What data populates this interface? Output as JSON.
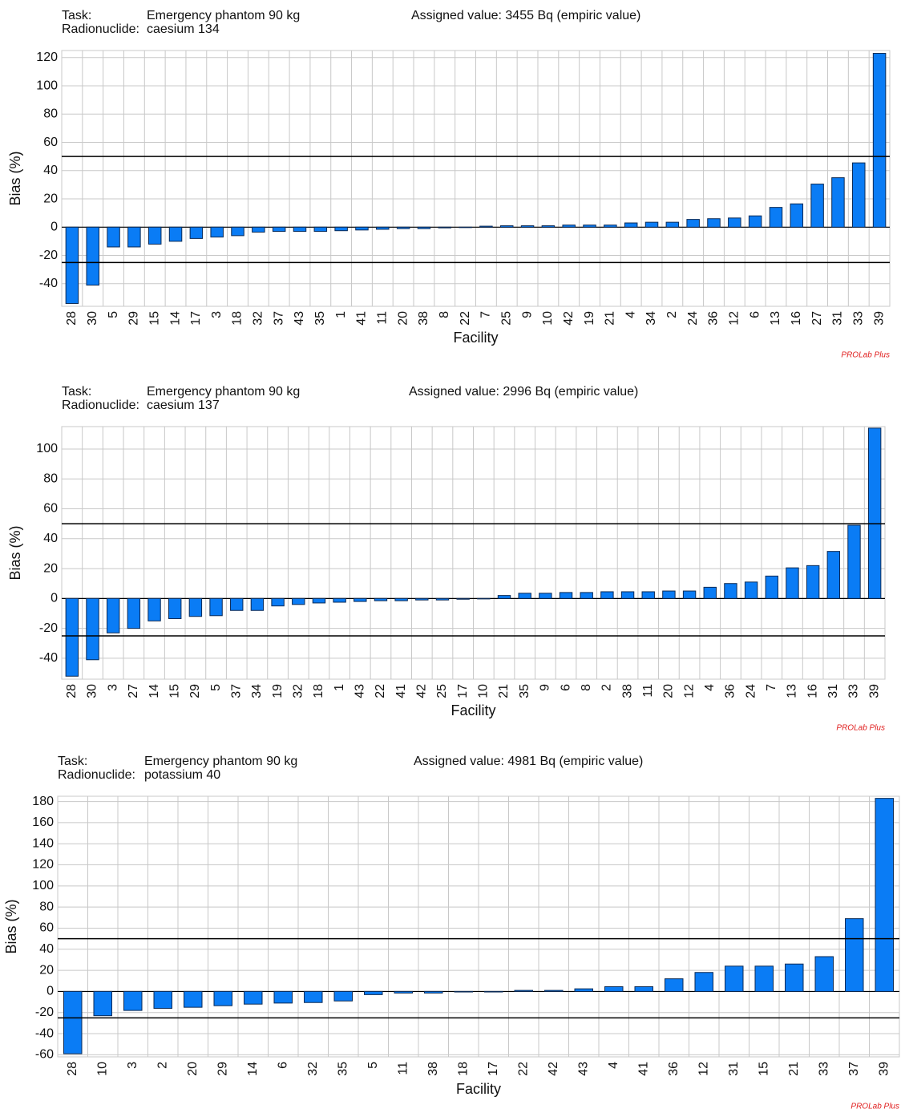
{
  "chart_data": [
    {
      "type": "bar",
      "task_label": "Task:",
      "task": "Emergency phantom 90 kg",
      "radionuclide_label": "Radionuclide:",
      "radionuclide": "caesium 134",
      "assigned_value": "Assigned value: 3455 Bq (empiric value)",
      "xlabel": "Facility",
      "ylabel": "Bias (%)",
      "watermark": "PROLab Plus",
      "categories": [
        "28",
        "30",
        "5",
        "29",
        "15",
        "14",
        "17",
        "3",
        "18",
        "32",
        "37",
        "43",
        "35",
        "1",
        "41",
        "11",
        "20",
        "38",
        "8",
        "22",
        "7",
        "25",
        "9",
        "10",
        "42",
        "19",
        "21",
        "4",
        "34",
        "2",
        "24",
        "36",
        "12",
        "6",
        "13",
        "16",
        "27",
        "31",
        "33",
        "39"
      ],
      "values": [
        -54,
        -41,
        -14,
        -14,
        -12,
        -10,
        -8,
        -7,
        -6,
        -3.5,
        -3,
        -3,
        -3,
        -2.5,
        -2,
        -1.5,
        -1,
        -1,
        -0.5,
        -0.3,
        0.7,
        1,
        1,
        1,
        1.5,
        1.5,
        1.5,
        3,
        3.5,
        3.5,
        5.5,
        6,
        6.5,
        8,
        14,
        16.5,
        30.5,
        35,
        45.5,
        123
      ],
      "color": "#0a7cf5",
      "ylim": [
        -56,
        125
      ],
      "yticks": [
        -40,
        -20,
        0,
        20,
        40,
        60,
        80,
        100,
        120
      ],
      "reference_lines": [
        50,
        -25
      ],
      "grid": true
    },
    {
      "type": "bar",
      "task_label": "Task:",
      "task": "Emergency phantom 90 kg",
      "radionuclide_label": "Radionuclide:",
      "radionuclide": "caesium 137",
      "assigned_value": "Assigned value: 2996 Bq (empiric value)",
      "xlabel": "Facility",
      "ylabel": "Bias (%)",
      "watermark": "PROLab Plus",
      "categories": [
        "28",
        "30",
        "3",
        "27",
        "14",
        "15",
        "29",
        "5",
        "37",
        "34",
        "19",
        "32",
        "18",
        "1",
        "43",
        "22",
        "41",
        "42",
        "25",
        "17",
        "10",
        "21",
        "35",
        "9",
        "6",
        "8",
        "2",
        "38",
        "11",
        "20",
        "12",
        "4",
        "36",
        "24",
        "7",
        "13",
        "16",
        "31",
        "33",
        "39"
      ],
      "values": [
        -52,
        -41,
        -23,
        -20,
        -15,
        -13.5,
        -12,
        -11.5,
        -8,
        -8,
        -5,
        -4,
        -3,
        -2.5,
        -2,
        -1.5,
        -1.5,
        -1,
        -1,
        -0.5,
        -0.3,
        2,
        3.5,
        3.5,
        4,
        4,
        4.5,
        4.5,
        4.5,
        5,
        5,
        7.5,
        10,
        11,
        15,
        20.5,
        22,
        31.5,
        49,
        114
      ],
      "color": "#0a7cf5",
      "ylim": [
        -54,
        115
      ],
      "yticks": [
        -40,
        -20,
        0,
        20,
        40,
        60,
        80,
        100
      ],
      "reference_lines": [
        50,
        -25
      ],
      "grid": true
    },
    {
      "type": "bar",
      "task_label": "Task:",
      "task": "Emergency phantom 90 kg",
      "radionuclide_label": "Radionuclide:",
      "radionuclide": "potassium 40",
      "assigned_value": "Assigned value: 4981 Bq (empiric value)",
      "xlabel": "Facility",
      "ylabel": "Bias (%)",
      "watermark": "PROLab Plus",
      "categories": [
        "28",
        "10",
        "3",
        "2",
        "20",
        "29",
        "14",
        "6",
        "32",
        "35",
        "5",
        "11",
        "38",
        "18",
        "17",
        "22",
        "42",
        "43",
        "4",
        "41",
        "36",
        "12",
        "31",
        "15",
        "21",
        "33",
        "37",
        "39"
      ],
      "values": [
        -59,
        -23,
        -18,
        -16,
        -15,
        -13.5,
        -12,
        -11,
        -10.5,
        -9,
        -3,
        -1.5,
        -1.5,
        -0.5,
        -0.5,
        1,
        1,
        2.5,
        4.5,
        4.5,
        12,
        18,
        24,
        24,
        26,
        33,
        69,
        183
      ],
      "color": "#0a7cf5",
      "ylim": [
        -62,
        185
      ],
      "yticks": [
        -60,
        -40,
        -20,
        0,
        20,
        40,
        60,
        80,
        100,
        120,
        140,
        160,
        180
      ],
      "reference_lines": [
        50,
        -25
      ],
      "grid": true
    }
  ]
}
